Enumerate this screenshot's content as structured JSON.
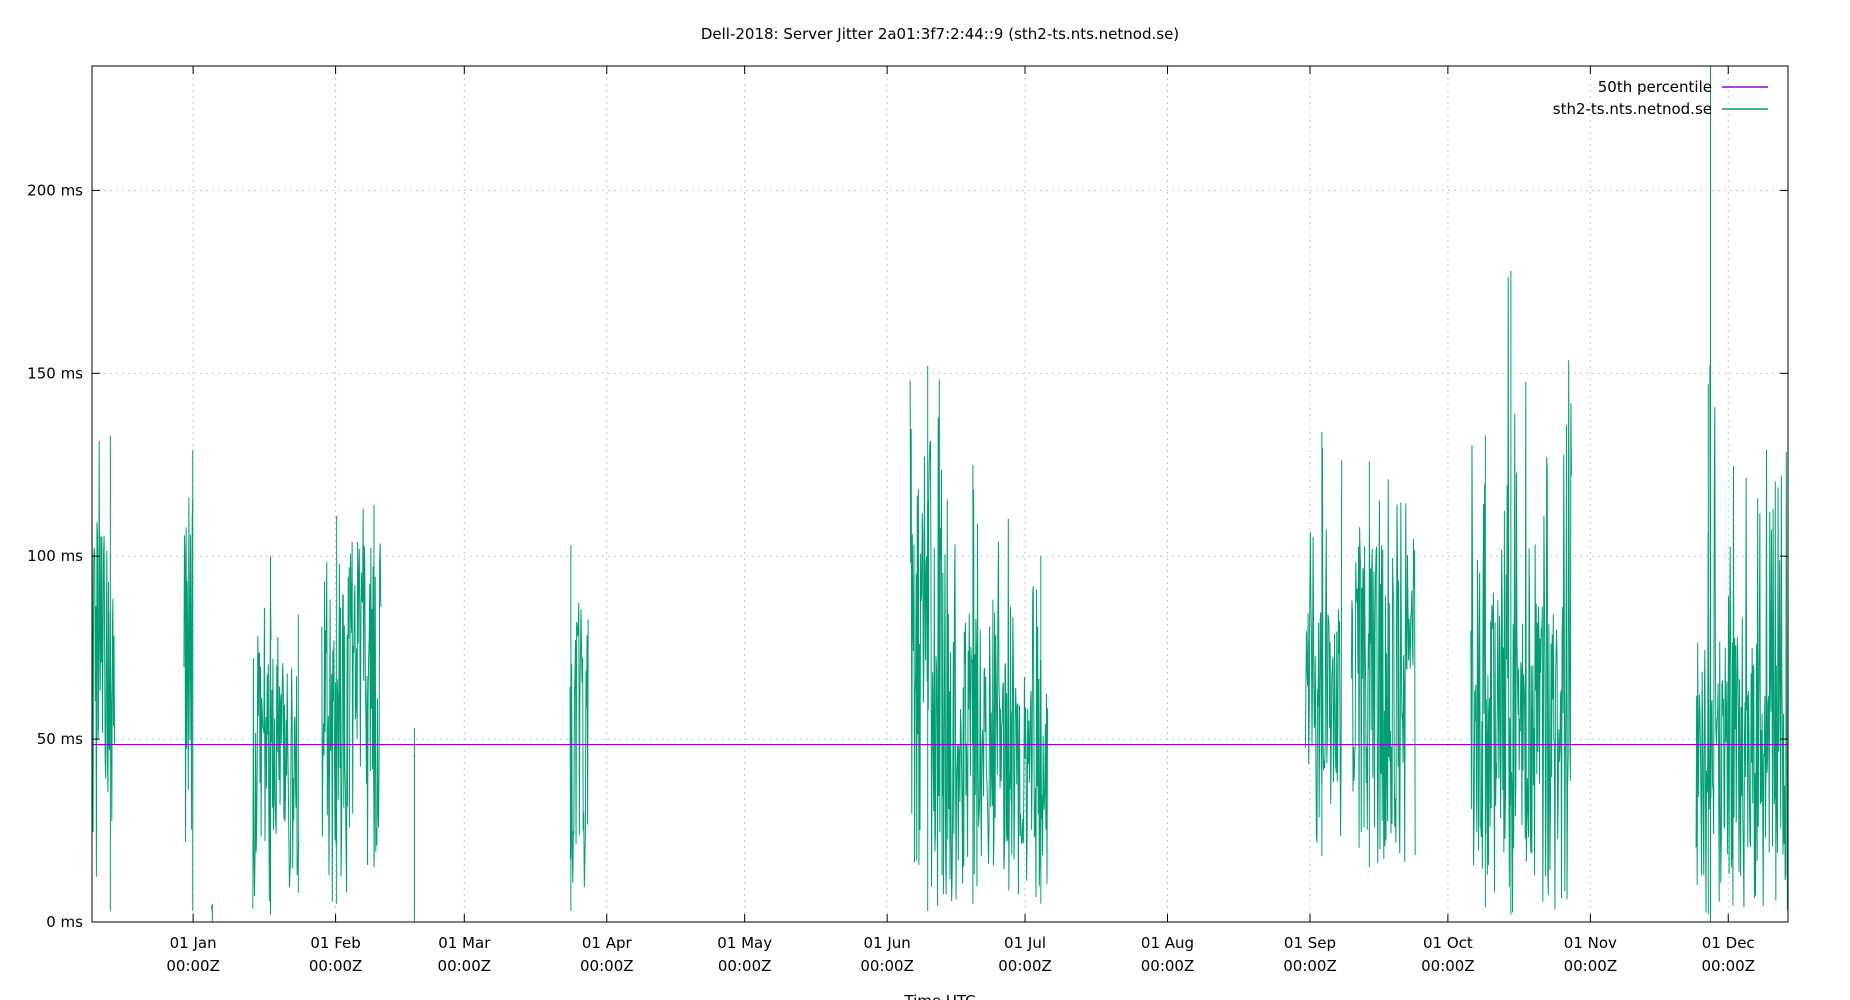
{
  "chart_data": {
    "type": "line",
    "title": "Dell-2018: Server Jitter 2a01:3f7:2:44::9 (sth2-ts.nts.netnod.se)",
    "xlabel": "Time UTC",
    "ylabel": "",
    "y_unit": "ms",
    "ylim": [
      0,
      234
    ],
    "yticks": [
      {
        "value": 0,
        "label": "0 ms"
      },
      {
        "value": 50,
        "label": "50 ms"
      },
      {
        "value": 100,
        "label": "100 ms"
      },
      {
        "value": 150,
        "label": "150 ms"
      },
      {
        "value": 200,
        "label": "200 ms"
      }
    ],
    "xlim": [
      "2017-12-10",
      "2018-12-14"
    ],
    "xticks": [
      {
        "date": "2018-01-01",
        "label": "01 Jan",
        "sublabel": "00:00Z"
      },
      {
        "date": "2018-02-01",
        "label": "01 Feb",
        "sublabel": "00:00Z"
      },
      {
        "date": "2018-03-01",
        "label": "01 Mar",
        "sublabel": "00:00Z"
      },
      {
        "date": "2018-04-01",
        "label": "01 Apr",
        "sublabel": "00:00Z"
      },
      {
        "date": "2018-05-01",
        "label": "01 May",
        "sublabel": "00:00Z"
      },
      {
        "date": "2018-06-01",
        "label": "01 Jun",
        "sublabel": "00:00Z"
      },
      {
        "date": "2018-07-01",
        "label": "01 Jul",
        "sublabel": "00:00Z"
      },
      {
        "date": "2018-08-01",
        "label": "01 Aug",
        "sublabel": "00:00Z"
      },
      {
        "date": "2018-09-01",
        "label": "01 Sep",
        "sublabel": "00:00Z"
      },
      {
        "date": "2018-10-01",
        "label": "01 Oct",
        "sublabel": "00:00Z"
      },
      {
        "date": "2018-11-01",
        "label": "01 Nov",
        "sublabel": "00:00Z"
      },
      {
        "date": "2018-12-01",
        "label": "01 Dec",
        "sublabel": "00:00Z"
      }
    ],
    "grid": true,
    "legend_position": "top-right",
    "series": [
      {
        "name": "50th percentile",
        "color": "#9400d3",
        "kind": "constant",
        "value": 48.5
      },
      {
        "name": "sth2-ts.nts.netnod.se",
        "color": "#009e73",
        "kind": "jitter-bursts",
        "bursts": [
          {
            "start": "2017-12-10",
            "end": "2017-12-15",
            "low": 3,
            "mid": 55,
            "high": 133
          },
          {
            "start": "2017-12-30",
            "end": "2018-01-01",
            "low": 3,
            "mid": 60,
            "high": 129
          },
          {
            "start": "2018-01-05",
            "end": "2018-01-05",
            "low": 0,
            "mid": 3,
            "high": 5
          },
          {
            "start": "2018-01-14",
            "end": "2018-01-18",
            "low": 2,
            "mid": 40,
            "high": 100
          },
          {
            "start": "2018-01-18",
            "end": "2018-01-24",
            "low": 8,
            "mid": 40,
            "high": 84
          },
          {
            "start": "2018-01-29",
            "end": "2018-02-04",
            "low": 5,
            "mid": 50,
            "high": 111
          },
          {
            "start": "2018-02-04",
            "end": "2018-02-11",
            "low": 15,
            "mid": 60,
            "high": 114
          },
          {
            "start": "2018-02-18",
            "end": "2018-02-18",
            "low": 0,
            "mid": 30,
            "high": 53
          },
          {
            "start": "2018-03-24",
            "end": "2018-03-28",
            "low": 3,
            "mid": 50,
            "high": 103
          },
          {
            "start": "2018-06-06",
            "end": "2018-06-13",
            "low": 3,
            "mid": 65,
            "high": 152
          },
          {
            "start": "2018-06-13",
            "end": "2018-06-28",
            "low": 5,
            "mid": 45,
            "high": 125
          },
          {
            "start": "2018-06-28",
            "end": "2018-07-06",
            "low": 5,
            "mid": 40,
            "high": 100
          },
          {
            "start": "2018-08-31",
            "end": "2018-09-08",
            "low": 18,
            "mid": 55,
            "high": 134
          },
          {
            "start": "2018-09-10",
            "end": "2018-09-24",
            "low": 15,
            "mid": 60,
            "high": 126
          },
          {
            "start": "2018-10-06",
            "end": "2018-10-14",
            "low": 4,
            "mid": 50,
            "high": 133
          },
          {
            "start": "2018-10-14",
            "end": "2018-10-28",
            "low": 2,
            "mid": 45,
            "high": 178
          },
          {
            "start": "2018-11-24",
            "end": "2018-12-14",
            "low": 2,
            "mid": 40,
            "high": 147
          },
          {
            "start": "2018-11-27",
            "end": "2018-11-27",
            "low": 0,
            "mid": 100,
            "high": 234
          }
        ]
      }
    ]
  }
}
